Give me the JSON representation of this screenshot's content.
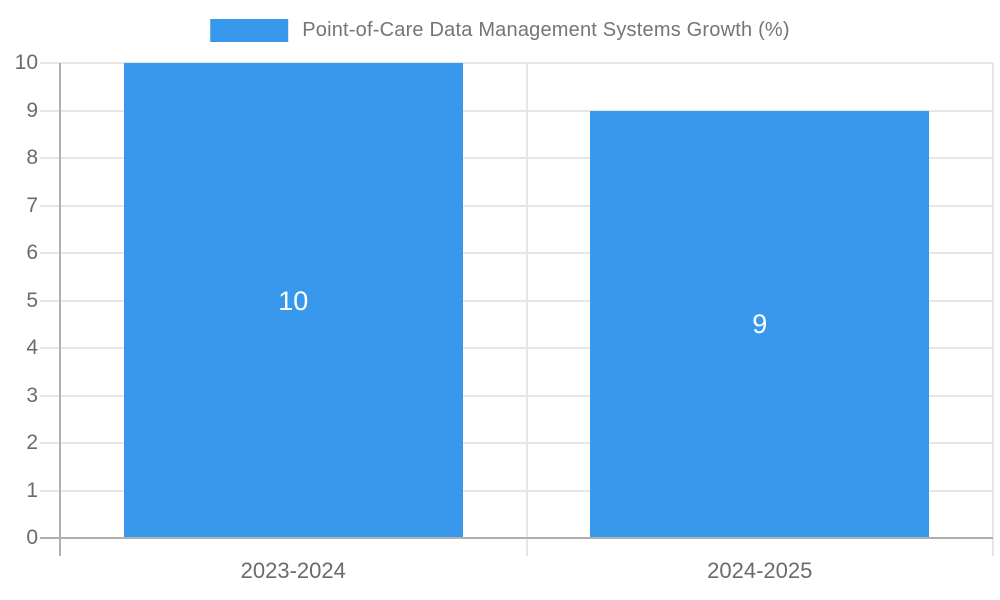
{
  "chart_data": {
    "type": "bar",
    "title": "Point-of-Care Data Management Systems Growth (%)",
    "categories": [
      "2023-2024",
      "2024-2025"
    ],
    "values": [
      10,
      9
    ],
    "bar_value_labels": [
      "10",
      "9"
    ],
    "xlabel": "",
    "ylabel": "",
    "ylim": [
      0,
      10
    ],
    "y_ticks": [
      0,
      1,
      2,
      3,
      4,
      5,
      6,
      7,
      8,
      9,
      10
    ],
    "grid": "on",
    "legend_position": "top-center",
    "colors": {
      "bar": "#3899ec",
      "grid_line": "#e6e6e6",
      "axis_line": "#b0b0b0",
      "tick_label": "#6b6b6b",
      "legend_text": "#757575",
      "bar_value_label": "#ffffff",
      "background": "#ffffff"
    }
  },
  "legend": {
    "series_label": "Point-of-Care Data Management Systems Growth (%)"
  }
}
